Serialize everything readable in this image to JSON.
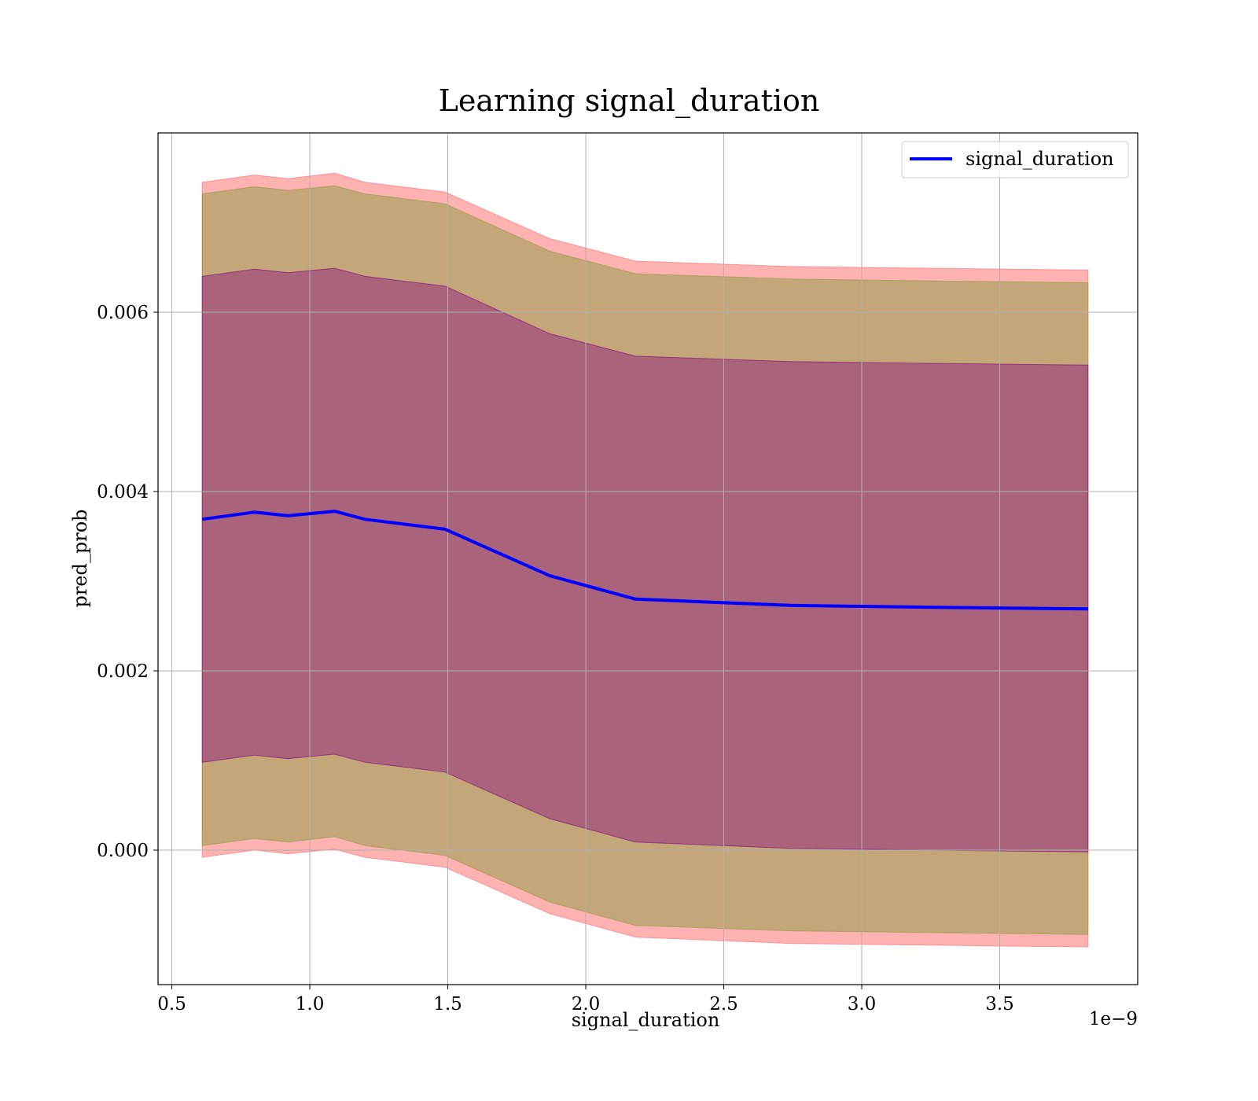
{
  "chart_data": {
    "type": "line",
    "title": "Learning signal_duration",
    "xlabel": "signal_duration",
    "ylabel": "pred_prob",
    "x_offset_label": "1e−9",
    "x_ticks": [
      "0.5",
      "1.0",
      "1.5",
      "2.0",
      "2.5",
      "3.0",
      "3.5"
    ],
    "y_ticks": [
      "0.000",
      "0.002",
      "0.004",
      "0.006"
    ],
    "xlim": [
      0.45,
      4.0
    ],
    "ylim": [
      -0.0015,
      0.008
    ],
    "grid": true,
    "legend_position": "top-right",
    "x": [
      0.61,
      0.8,
      0.92,
      1.09,
      1.2,
      1.49,
      1.87,
      2.18,
      2.74,
      3.24,
      3.82
    ],
    "series": [
      {
        "name": "signal_duration",
        "color": "#0000ff",
        "values": [
          0.00369,
          0.00377,
          0.00373,
          0.00378,
          0.00369,
          0.00358,
          0.00306,
          0.0028,
          0.00273,
          0.00271,
          0.00269
        ]
      }
    ],
    "bands": [
      {
        "color": "#ff6666",
        "opacity": 0.5,
        "upper": [
          0.00745,
          0.00753,
          0.00749,
          0.00755,
          0.00745,
          0.00734,
          0.00682,
          0.00657,
          0.00651,
          0.00649,
          0.00647
        ],
        "lower": [
          -8e-05,
          0.0,
          -4e-05,
          1e-05,
          -8e-05,
          -0.00019,
          -0.00071,
          -0.00097,
          -0.00104,
          -0.00106,
          -0.00108
        ]
      },
      {
        "color": "#8b9a3d",
        "opacity": 0.5,
        "upper": [
          0.00732,
          0.0074,
          0.00736,
          0.00741,
          0.00732,
          0.00721,
          0.00668,
          0.00643,
          0.00637,
          0.00635,
          0.00633
        ],
        "lower": [
          5e-05,
          0.00013,
          9e-05,
          0.00015,
          5e-05,
          -6e-05,
          -0.00058,
          -0.00084,
          -0.0009,
          -0.00092,
          -0.00094
        ]
      },
      {
        "color": "#800080",
        "opacity": 0.4,
        "upper": [
          0.0064,
          0.00648,
          0.00644,
          0.00649,
          0.0064,
          0.00629,
          0.00576,
          0.00551,
          0.00545,
          0.00543,
          0.00541
        ],
        "lower": [
          0.00098,
          0.00106,
          0.00102,
          0.00107,
          0.00098,
          0.00087,
          0.00035,
          9e-05,
          2e-05,
          0.0,
          -2e-05
        ]
      }
    ]
  }
}
